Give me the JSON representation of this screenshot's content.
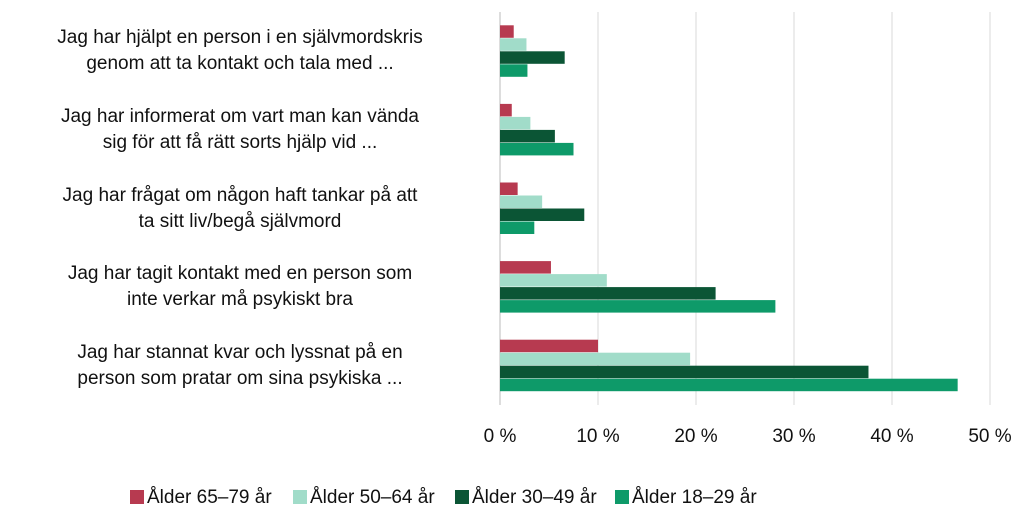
{
  "chart_data": {
    "type": "hbar",
    "categories": [
      "Jag har hjälpt en person i en självmordskris\ngenom att ta kontakt och tala med ...",
      "Jag har informerat om vart man kan vända\nsig för att få rätt sorts hjälp vid ...",
      "Jag har frågat om någon haft tankar på att\nta sitt liv/begå självmord",
      "Jag har tagit kontakt med en person som\ninte verkar må psykiskt bra",
      "Jag har stannat kvar och lyssnat på en\nperson som pratar om sina psykiska ..."
    ],
    "series": [
      {
        "name": "Ålder 65–79 år",
        "color": "#b73a50",
        "values": [
          1.4,
          1.2,
          1.8,
          5.2,
          10.0
        ]
      },
      {
        "name": "Ålder 50–64 år",
        "color": "#a1dcc9",
        "values": [
          2.7,
          3.1,
          4.3,
          10.9,
          19.4
        ]
      },
      {
        "name": "Ålder 30–49 år",
        "color": "#0b5535",
        "values": [
          6.6,
          5.6,
          8.6,
          22.0,
          37.6
        ]
      },
      {
        "name": "Ålder 18–29 år",
        "color": "#0e9a69",
        "values": [
          2.8,
          7.5,
          3.5,
          28.1,
          46.7
        ]
      }
    ],
    "xlim": [
      0,
      50
    ],
    "xticks": [
      {
        "value": 0,
        "label": "0 %"
      },
      {
        "value": 10,
        "label": "10 %"
      },
      {
        "value": 20,
        "label": "20 %"
      },
      {
        "value": 30,
        "label": "30 %"
      },
      {
        "value": 40,
        "label": "40 %"
      },
      {
        "value": 50,
        "label": "50 %"
      }
    ],
    "grid": true
  }
}
